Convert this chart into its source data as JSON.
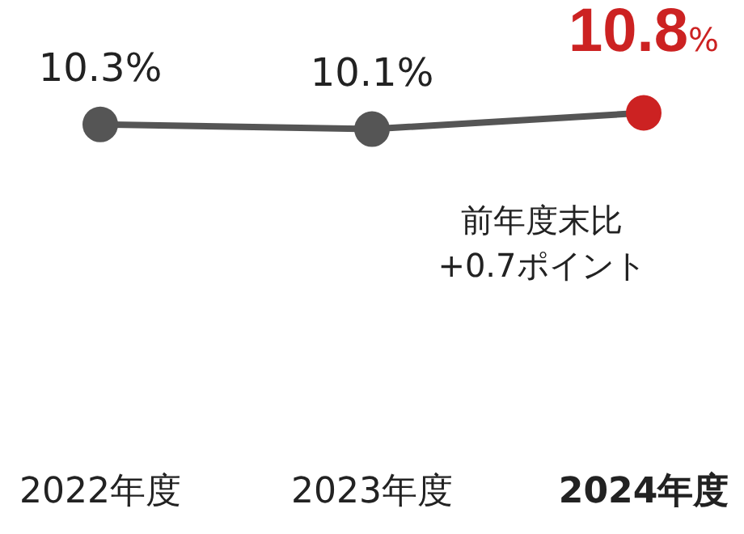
{
  "chart_data": {
    "type": "line",
    "categories": [
      "2022年度",
      "2023年度",
      "2024年度"
    ],
    "series": [
      {
        "color": "#555555",
        "colors": [
          "#555555",
          "#555555",
          "#cc2222"
        ],
        "values": [
          10.3,
          10.1,
          10.8
        ],
        "value_labels": [
          "10.3%",
          "10.1%",
          "10.8%"
        ]
      }
    ],
    "marker": "circle",
    "line_style": "solid",
    "grid": false,
    "legend": false,
    "annotations": [
      "前年度末比\n+0.7ポイント"
    ]
  }
}
